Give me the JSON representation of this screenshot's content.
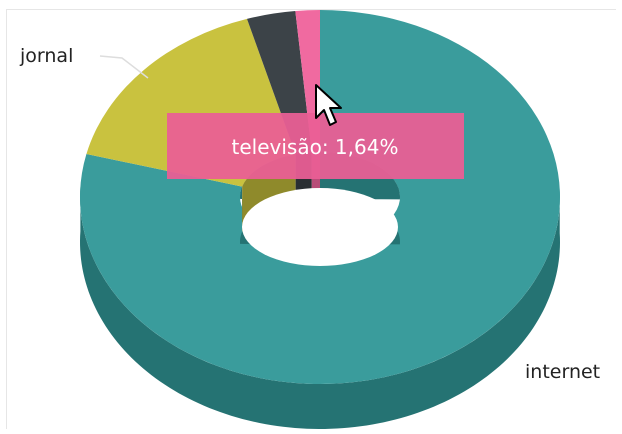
{
  "chart_data": {
    "type": "pie",
    "variant": "3d-donut",
    "title": "",
    "slices": [
      {
        "label": "internet",
        "value": 78.69,
        "color": "#3a9c9c",
        "side_color": "#257373"
      },
      {
        "label": "jornal",
        "value": 16.39,
        "color": "#c9c23f",
        "side_color": "#8f8a2b"
      },
      {
        "label": "",
        "value": 3.28,
        "color": "#3c4348",
        "side_color": "#2a2f33"
      },
      {
        "label": "televisão",
        "value": 1.64,
        "color": "#f06aa0",
        "side_color": "#b84d78"
      }
    ],
    "tooltip": {
      "text": "televisão: 1,64%",
      "color": "#ea5f95"
    },
    "cursor": "arrow-pointer-icon"
  }
}
